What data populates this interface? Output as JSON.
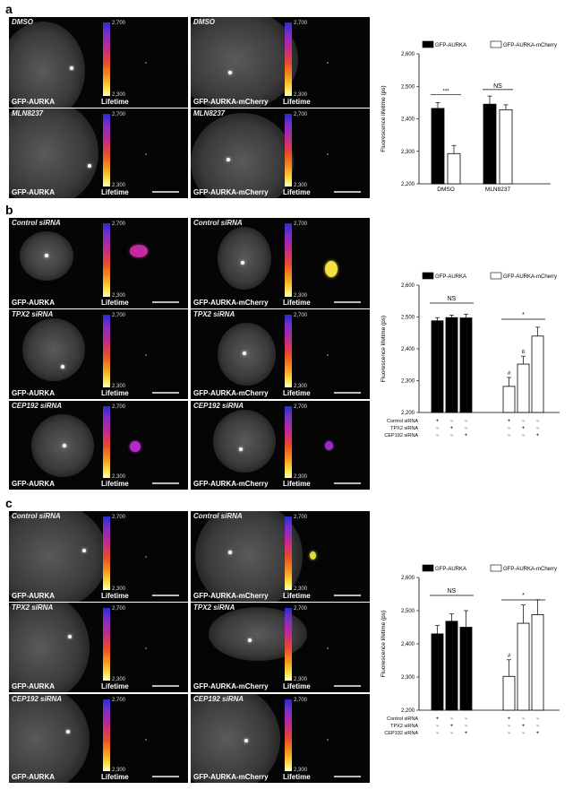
{
  "panels": [
    {
      "letter": "a",
      "image_rows": [
        {
          "left_condition": "DMSO",
          "left_label": "GFP-AURKA",
          "right_condition": "DMSO",
          "right_label": "GFP-AURKA-mCherry"
        },
        {
          "left_condition": "MLN8237",
          "left_label": "GFP-AURKA",
          "right_condition": "MLN8237",
          "right_label": "GFP-AURKA-mCherry"
        }
      ]
    },
    {
      "letter": "b",
      "image_rows": [
        {
          "left_condition": "Control siRNA",
          "left_label": "GFP-AURKA",
          "right_condition": "Control siRNA",
          "right_label": "GFP-AURKA-mCherry"
        },
        {
          "left_condition": "TPX2 siRNA",
          "left_label": "GFP-AURKA",
          "right_condition": "TPX2 siRNA",
          "right_label": "GFP-AURKA-mCherry"
        },
        {
          "left_condition": "CEP192 siRNA",
          "left_label": "GFP-AURKA",
          "right_condition": "CEP192 siRNA",
          "right_label": "GFP-AURKA-mCherry"
        }
      ]
    },
    {
      "letter": "c",
      "image_rows": [
        {
          "left_condition": "Control siRNA",
          "left_label": "GFP-AURKA",
          "right_condition": "Control siRNA",
          "right_label": "GFP-AURKA-mCherry"
        },
        {
          "left_condition": "TPX2 siRNA",
          "left_label": "GFP-AURKA",
          "right_condition": "TPX2 siRNA",
          "right_label": "GFP-AURKA-mCherry"
        },
        {
          "left_condition": "CEP192 siRNA",
          "left_label": "GFP-AURKA",
          "right_condition": "CEP192 siRNA",
          "right_label": "GFP-AURKA-mCherry"
        }
      ]
    }
  ],
  "colorbar": {
    "top": "2,700",
    "bottom": "2,300",
    "label": "Lifetime"
  },
  "chart_data": [
    {
      "type": "bar",
      "panel": "a",
      "ylabel": "Fluorescence lifetime (ps)",
      "ylim": [
        2200,
        2600
      ],
      "yticks": [
        "2,200",
        "2,300",
        "2,400",
        "2,500",
        "2,600"
      ],
      "legend": [
        "GFP-AURKA",
        "GFP-AURKA-mCherry"
      ],
      "categories": [
        "DMSO",
        "MLN8237"
      ],
      "series": [
        {
          "name": "GFP-AURKA",
          "values": [
            2432,
            2445
          ],
          "errors": [
            18,
            25
          ],
          "color": "#000000"
        },
        {
          "name": "GFP-AURKA-mCherry",
          "values": [
            2293,
            2428
          ],
          "errors": [
            25,
            15
          ],
          "color": "#ffffff"
        }
      ],
      "significance": [
        "***",
        "NS"
      ]
    },
    {
      "type": "bar",
      "panel": "b",
      "ylabel": "Fluorescence lifetime (ps)",
      "ylim": [
        2200,
        2600
      ],
      "yticks": [
        "2,200",
        "2,300",
        "2,400",
        "2,500",
        "2,600"
      ],
      "legend": [
        "GFP-AURKA",
        "GFP-AURKA-mCherry"
      ],
      "condition_labels": [
        "Control siRNA",
        "TPX2 siRNA",
        "CEP192 siRNA"
      ],
      "groups": [
        {
          "name": "GFP-AURKA",
          "values": [
            2488,
            2498,
            2497
          ],
          "errors": [
            10,
            8,
            12
          ],
          "color": "#000000",
          "signs": [
            [
              "+",
              "−",
              "−"
            ],
            [
              "−",
              "+",
              "−"
            ],
            [
              "−",
              "−",
              "+"
            ]
          ],
          "annotations": [
            "",
            "",
            ""
          ]
        },
        {
          "name": "GFP-AURKA-mCherry",
          "values": [
            2282,
            2352,
            2440
          ],
          "errors": [
            28,
            25,
            28
          ],
          "color": "#ffffff",
          "signs": [
            [
              "+",
              "−",
              "−"
            ],
            [
              "−",
              "+",
              "−"
            ],
            [
              "−",
              "−",
              "+"
            ]
          ],
          "annotations": [
            "#",
            "b",
            ""
          ]
        }
      ],
      "significance": [
        "NS",
        "*"
      ]
    },
    {
      "type": "bar",
      "panel": "c",
      "ylabel": "Fluorescence lifetime (ps)",
      "ylim": [
        2200,
        2600
      ],
      "yticks": [
        "2,200",
        "2,300",
        "2,400",
        "2,500",
        "2,600"
      ],
      "legend": [
        "GFP-AURKA",
        "GFP-AURKA-mCherry"
      ],
      "condition_labels": [
        "Control siRNA",
        "TPX2 siRNA",
        "CEP192 siRNA"
      ],
      "groups": [
        {
          "name": "GFP-AURKA",
          "values": [
            2430,
            2468,
            2450
          ],
          "errors": [
            25,
            22,
            50
          ],
          "color": "#000000",
          "signs": [
            [
              "+",
              "−",
              "−"
            ],
            [
              "−",
              "+",
              "−"
            ],
            [
              "−",
              "−",
              "+"
            ]
          ],
          "annotations": [
            "",
            "",
            ""
          ]
        },
        {
          "name": "GFP-AURKA-mCherry",
          "values": [
            2302,
            2462,
            2488
          ],
          "errors": [
            50,
            55,
            45
          ],
          "color": "#ffffff",
          "signs": [
            [
              "+",
              "−",
              "−"
            ],
            [
              "−",
              "+",
              "−"
            ],
            [
              "−",
              "−",
              "+"
            ]
          ],
          "annotations": [
            "#",
            "",
            ""
          ]
        }
      ],
      "significance": [
        "NS",
        "*"
      ]
    }
  ]
}
